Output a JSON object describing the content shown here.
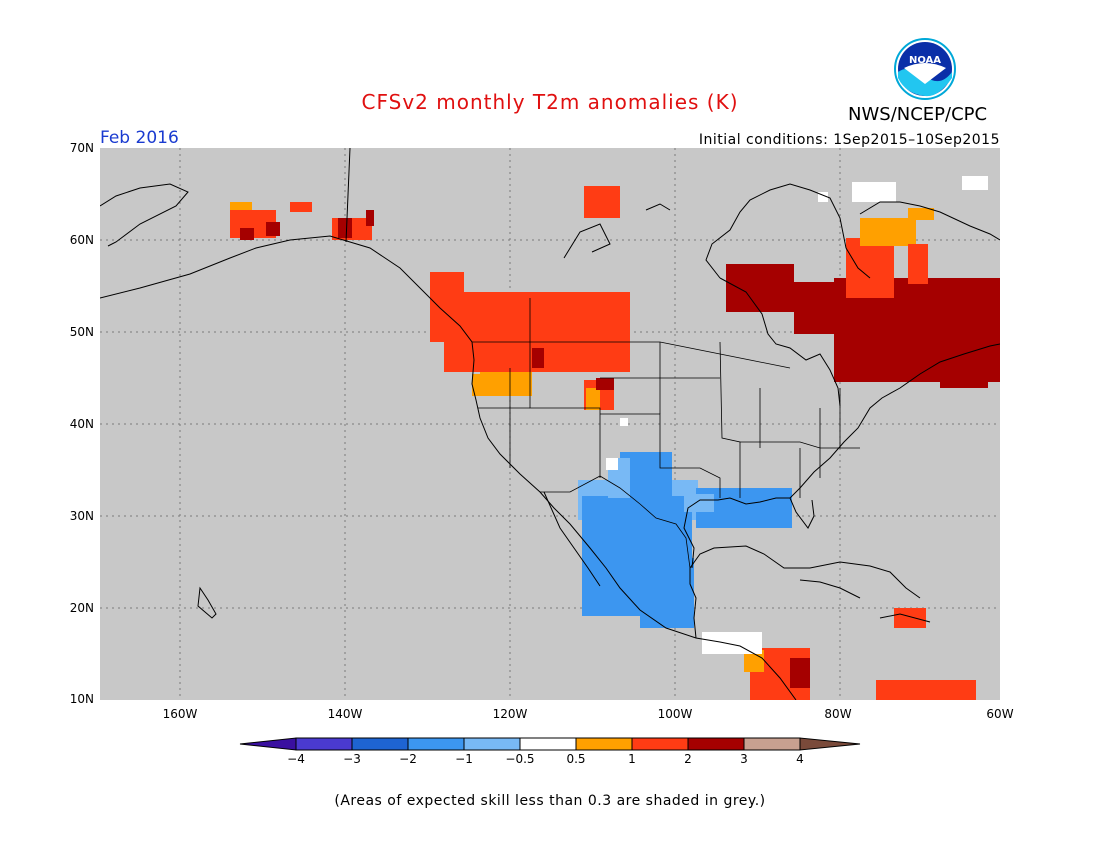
{
  "title": "CFSv2 monthly T2m anomalies (K)",
  "organization": "NWS/NCEP/CPC",
  "logo_text": "NOAA",
  "month_label": "Feb 2016",
  "initial_conditions": "Initial conditions: 1Sep2015–10Sep2015",
  "lat_labels": [
    "70N",
    "60N",
    "50N",
    "40N",
    "30N",
    "20N",
    "10N"
  ],
  "lon_labels": [
    "160W",
    "140W",
    "120W",
    "100W",
    "80W",
    "60W"
  ],
  "colorbar": {
    "labels": [
      "−4",
      "−3",
      "−2",
      "−1",
      "−0.5",
      "0.5",
      "1",
      "2",
      "3",
      "4"
    ],
    "colors": [
      "#3a10a0",
      "#4a3ad0",
      "#1e64d2",
      "#3c96f0",
      "#78b9f5",
      "#ffffff",
      "#ffa000",
      "#ff3c14",
      "#a50000",
      "#c8a090",
      "#7a4a3a"
    ]
  },
  "footnote": "(Areas of expected skill less than 0.3 are shaded in grey.)",
  "colors": {
    "map_background": "#c8c8c8",
    "title": "#e01010",
    "month_label": "#1a3bd0"
  }
}
